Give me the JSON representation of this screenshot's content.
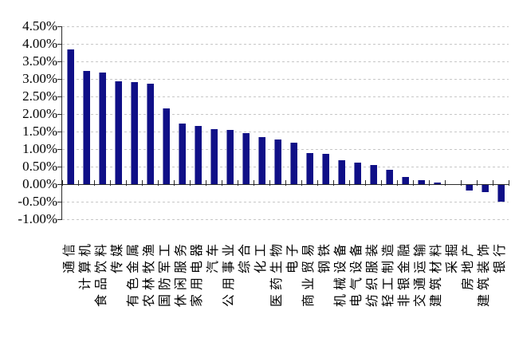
{
  "chart_data": {
    "type": "bar",
    "title": "",
    "xlabel": "",
    "ylabel": "",
    "unit": "%",
    "categories": [
      "通信",
      "计算机",
      "食品饮料",
      "传媒",
      "有色金属",
      "农林牧渔",
      "国防军工",
      "休闲服务",
      "家用电器",
      "汽车",
      "公用事业",
      "综合",
      "化工",
      "医药生物",
      "电子",
      "商业贸易",
      "钢铁",
      "机械设备",
      "电气设备",
      "纺织服装",
      "轻工制造",
      "非银金融",
      "交通运输",
      "建筑材料",
      "采掘",
      "房地产",
      "建筑装饰",
      "银行"
    ],
    "values": [
      3.85,
      3.22,
      3.19,
      2.93,
      2.9,
      2.86,
      2.15,
      1.72,
      1.66,
      1.56,
      1.55,
      1.45,
      1.34,
      1.27,
      1.18,
      0.88,
      0.87,
      0.68,
      0.62,
      0.54,
      0.4,
      0.2,
      0.11,
      0.05,
      0.01,
      -0.17,
      -0.21,
      -0.48
    ],
    "ylim": [
      -1.0,
      4.5
    ],
    "ytick_step": 0.5,
    "ytick_labels": [
      "4.50%",
      "4.00%",
      "3.50%",
      "3.00%",
      "2.50%",
      "2.00%",
      "1.50%",
      "1.00%",
      "0.50%",
      "0.00%",
      "-0.50%",
      "-1.00%"
    ],
    "grid": "horizontal-dashed",
    "legend": "none",
    "bar_color": "#0f0f87",
    "bar_highlight_color": "#7a7ab8",
    "gridline_color": "#c7c7c7",
    "axis_color": "#2b2b2b",
    "background_color": "#ffffff"
  }
}
